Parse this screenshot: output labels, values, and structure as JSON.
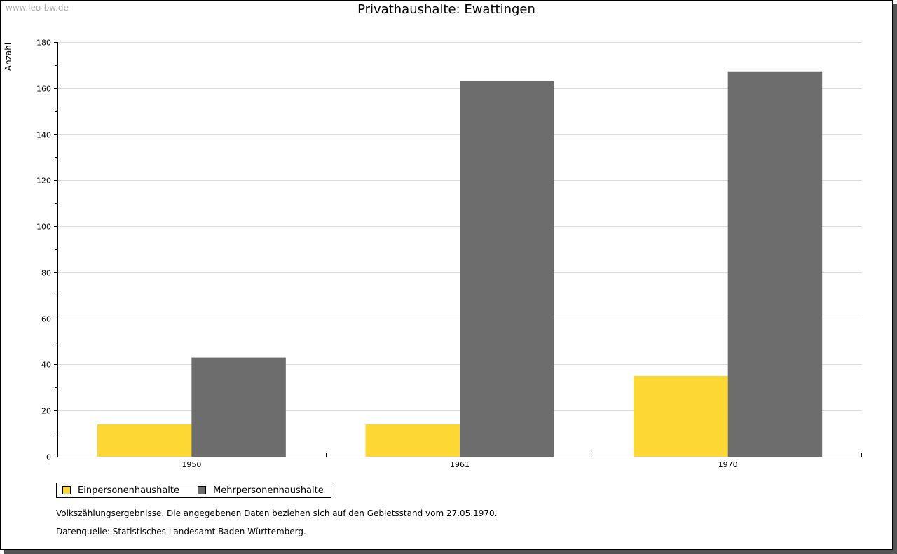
{
  "watermark": "www.leo-bw.de",
  "chart_data": {
    "type": "bar",
    "title": "Privathaushalte: Ewattingen",
    "ylabel": "Anzahl",
    "xlabel": "",
    "categories": [
      "1950",
      "1961",
      "1970"
    ],
    "ylim": [
      0,
      180
    ],
    "yticks": [
      0,
      20,
      40,
      60,
      80,
      100,
      120,
      140,
      160,
      180
    ],
    "grid": true,
    "legend_position": "bottom-left",
    "series": [
      {
        "name": "Einpersonenhaushalte",
        "color": "#fdd835",
        "values": [
          14,
          14,
          35
        ]
      },
      {
        "name": "Mehrpersonenhaushalte",
        "color": "#6d6d6d",
        "values": [
          43,
          163,
          167
        ]
      }
    ]
  },
  "notes": {
    "line1": "Volkszählungsergebnisse. Die angegebenen Daten beziehen sich auf den Gebietsstand vom 27.05.1970.",
    "line2": "Datenquelle: Statistisches Landesamt Baden-Württemberg."
  }
}
